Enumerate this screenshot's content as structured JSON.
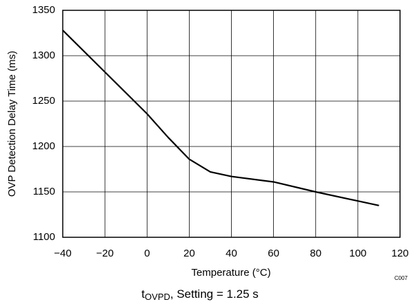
{
  "chart_data": {
    "type": "line",
    "x_label": "Temperature (°C)",
    "y_label": "OVP Detection Delay Time (ms)",
    "code": "C007",
    "caption": {
      "main": "t",
      "sub": "OVPD",
      "rest": ", Setting = 1.25 s"
    },
    "x": [
      -40,
      -20,
      0,
      10,
      20,
      30,
      40,
      60,
      80,
      100,
      110
    ],
    "series": [
      {
        "color": "#000000",
        "values": [
          1328,
          1282,
          1236,
          1210,
          1186,
          1172,
          1167,
          1161,
          1150,
          1140,
          1135
        ]
      }
    ],
    "xlim": [
      -40,
      120
    ],
    "xticks": [
      {
        "value": -40,
        "label": "−40"
      },
      {
        "value": -20,
        "label": "−20"
      },
      0,
      20,
      40,
      60,
      80,
      100,
      120
    ],
    "ylim": [
      1100,
      1350
    ],
    "yticks": [
      1100,
      1150,
      1200,
      1250,
      1300,
      1350
    ],
    "grid": true
  }
}
